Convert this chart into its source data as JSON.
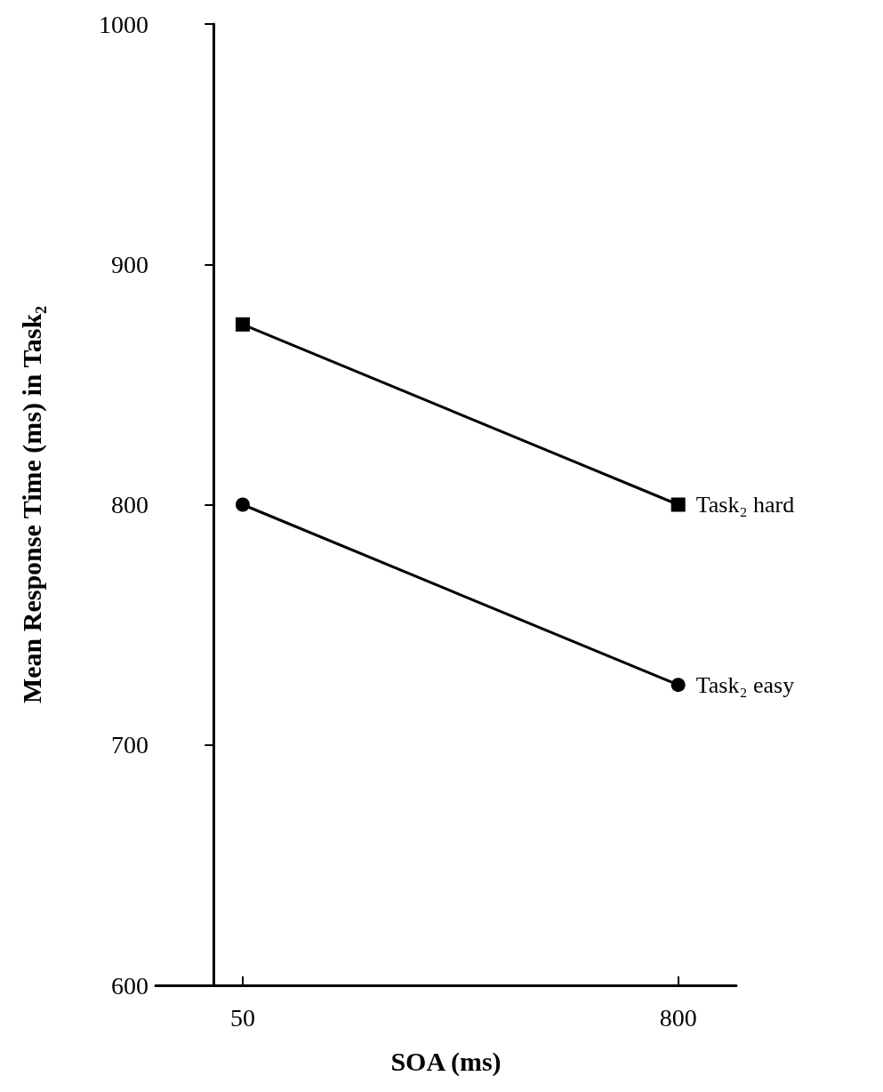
{
  "chart_data": {
    "type": "line",
    "xlabel": "SOA (ms)",
    "ylabel": "Mean Response Time (ms) in Task₂",
    "x": [
      50,
      800
    ],
    "xlim": [
      -100,
      900
    ],
    "xticks": [
      50,
      800
    ],
    "ylim": [
      600,
      1000
    ],
    "yticks": [
      600,
      700,
      800,
      900,
      1000
    ],
    "grid": false,
    "legend": false,
    "line_style": "solid",
    "series": [
      {
        "name": "Task₂ hard",
        "color": "#000000",
        "marker": "square",
        "values": [
          875,
          800
        ]
      },
      {
        "name": "Task₂ easy",
        "color": "#000000",
        "marker": "circle",
        "values": [
          800,
          725
        ]
      }
    ]
  }
}
